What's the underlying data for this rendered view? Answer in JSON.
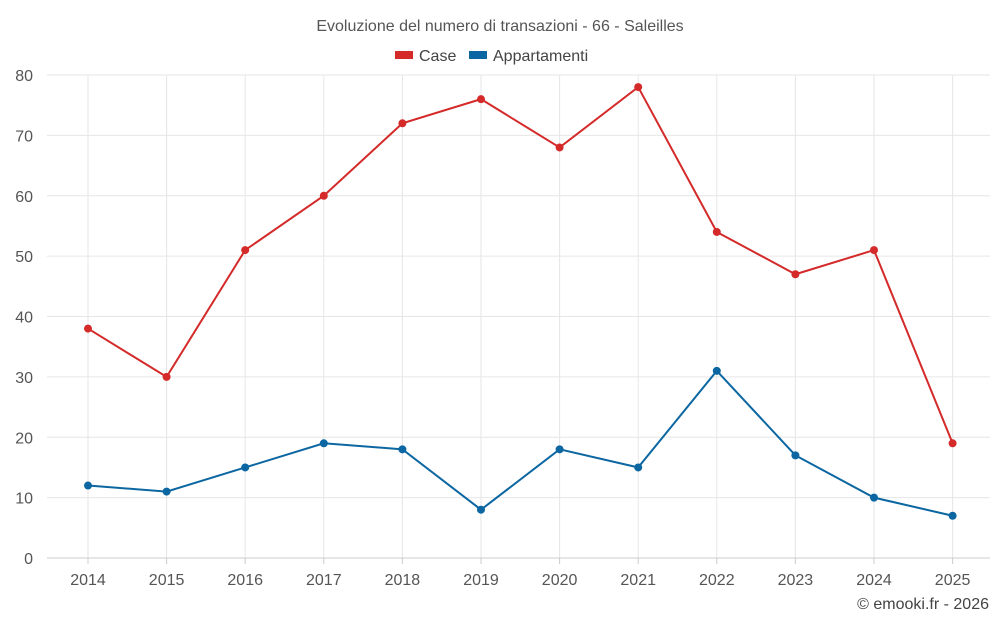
{
  "chart_data": {
    "type": "line",
    "title": "Evoluzione del numero di transazioni - 66 - Saleilles",
    "categories": [
      "2014",
      "2015",
      "2016",
      "2017",
      "2018",
      "2019",
      "2020",
      "2021",
      "2022",
      "2023",
      "2024",
      "2025"
    ],
    "series": [
      {
        "name": "Case",
        "color": "#d42a2a",
        "values": [
          38,
          30,
          51,
          60,
          72,
          76,
          68,
          78,
          54,
          47,
          51,
          19
        ]
      },
      {
        "name": "Appartamenti",
        "color": "#0b66a1",
        "values": [
          12,
          11,
          15,
          19,
          18,
          8,
          18,
          15,
          31,
          17,
          10,
          7
        ]
      }
    ],
    "ylim": [
      0,
      80
    ],
    "yticks": [
      0,
      10,
      20,
      30,
      40,
      50,
      60,
      70,
      80
    ],
    "xlabel": "",
    "ylabel": "",
    "grid": true,
    "legend_position": "top-center"
  },
  "credit": "© emooki.fr - 2026"
}
